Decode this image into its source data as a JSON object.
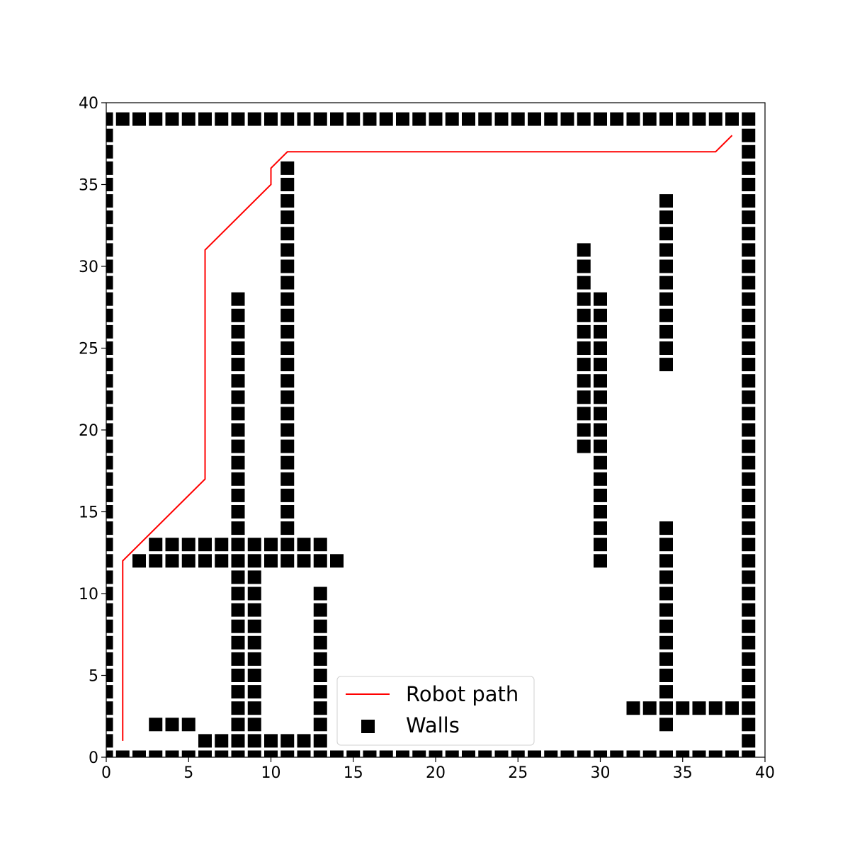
{
  "chart_data": {
    "type": "scatter",
    "title": "",
    "xlabel": "",
    "ylabel": "",
    "xlim": [
      0,
      40
    ],
    "ylim": [
      0,
      40
    ],
    "xticks": [
      0,
      5,
      10,
      15,
      20,
      25,
      30,
      35,
      40
    ],
    "yticks": [
      0,
      5,
      10,
      15,
      20,
      25,
      30,
      35,
      40
    ],
    "grid": false,
    "legend_location": "lower center",
    "colors": {
      "path": "#ff0000",
      "walls": "#000000"
    },
    "series": [
      {
        "name": "Robot path",
        "type": "line",
        "points": [
          [
            1,
            1
          ],
          [
            1,
            12
          ],
          [
            6,
            17
          ],
          [
            6,
            31
          ],
          [
            10,
            35
          ],
          [
            10,
            36
          ],
          [
            11,
            37
          ],
          [
            37,
            37
          ],
          [
            38,
            38
          ]
        ]
      },
      {
        "name": "Walls",
        "type": "scatter",
        "marker": "square",
        "segments": [
          {
            "axis": "x",
            "y": 39,
            "from": 0,
            "to": 39
          },
          {
            "axis": "x",
            "y": 0,
            "from": 0,
            "to": 39
          },
          {
            "axis": "y",
            "x": 0,
            "from": 0,
            "to": 39
          },
          {
            "axis": "y",
            "x": 39,
            "from": 0,
            "to": 39
          },
          {
            "axis": "x",
            "y": 13,
            "from": 3,
            "to": 13
          },
          {
            "axis": "x",
            "y": 12,
            "from": 2,
            "to": 14
          },
          {
            "axis": "x",
            "y": 2,
            "from": 3,
            "to": 5
          },
          {
            "axis": "x",
            "y": 1,
            "from": 6,
            "to": 13
          },
          {
            "axis": "y",
            "x": 8,
            "from": 1,
            "to": 28
          },
          {
            "axis": "y",
            "x": 9,
            "from": 1,
            "to": 11
          },
          {
            "axis": "y",
            "x": 11,
            "from": 14,
            "to": 36
          },
          {
            "axis": "y",
            "x": 13,
            "from": 1,
            "to": 10
          },
          {
            "axis": "y",
            "x": 29,
            "from": 19,
            "to": 31
          },
          {
            "axis": "y",
            "x": 30,
            "from": 12,
            "to": 28
          },
          {
            "axis": "y",
            "x": 34,
            "from": 24,
            "to": 34
          },
          {
            "axis": "y",
            "x": 34,
            "from": 2,
            "to": 14
          },
          {
            "axis": "x",
            "y": 3,
            "from": 32,
            "to": 38
          }
        ]
      }
    ]
  }
}
